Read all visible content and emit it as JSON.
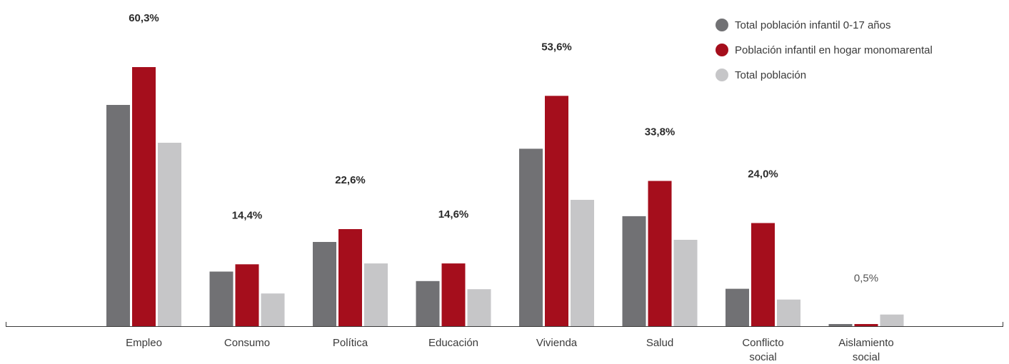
{
  "chart_data": {
    "type": "bar",
    "categories": [
      [
        "Empleo"
      ],
      [
        "Consumo"
      ],
      [
        "Política"
      ],
      [
        "Educación"
      ],
      [
        "Vivienda"
      ],
      [
        "Salud"
      ],
      [
        "Conflicto",
        "social"
      ],
      [
        "Aislamiento",
        "social"
      ]
    ],
    "series": [
      {
        "name": "Total población infantil 0-17 años",
        "color": "#717174",
        "values": [
          51.5,
          12.7,
          19.6,
          10.5,
          41.3,
          25.6,
          8.7,
          0.5
        ]
      },
      {
        "name": "Población infantil en hogar monomarental",
        "color": "#a50e1c",
        "values": [
          60.3,
          14.4,
          22.6,
          14.6,
          53.6,
          33.8,
          24.0,
          0.5
        ]
      },
      {
        "name": "Total población",
        "color": "#c6c6c8",
        "values": [
          42.7,
          7.6,
          14.6,
          8.6,
          29.4,
          20.1,
          6.2,
          2.7
        ]
      }
    ],
    "data_labels": [
      "60,3%",
      "14,4%",
      "22,6%",
      "14,6%",
      "53,6%",
      "33,8%",
      "24,0%",
      "0,5%"
    ],
    "data_label_bold": [
      true,
      true,
      true,
      true,
      true,
      true,
      true,
      false
    ],
    "ylim": [
      0,
      70
    ],
    "legend_position": "top-right",
    "grid": false,
    "title": "",
    "xlabel": "",
    "ylabel": ""
  }
}
